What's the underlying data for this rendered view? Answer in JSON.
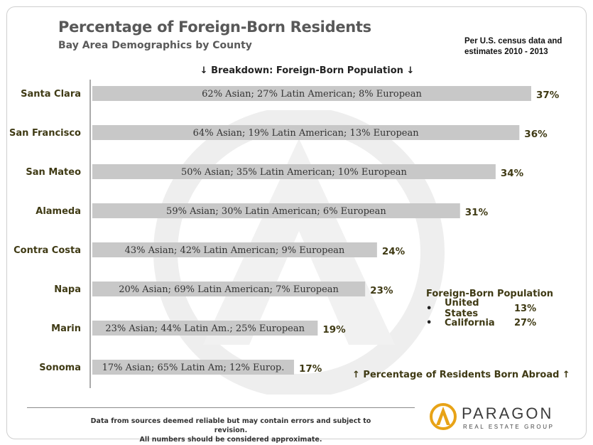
{
  "header": {
    "title": "Percentage of Foreign-Born Residents",
    "subtitle": "Bay Area Demographics by County",
    "source_line1": "Per U.S. census data and",
    "source_line2": "estimates 2010 - 2013"
  },
  "breakdown_label": "↓ Breakdown: Foreign-Born Population ↓",
  "chart_data": {
    "type": "bar",
    "orientation": "horizontal",
    "title": "Percentage of Foreign-Born Residents",
    "categories": [
      "Santa Clara",
      "San Francisco",
      "San Mateo",
      "Alameda",
      "Contra Costa",
      "Napa",
      "Marin",
      "Sonoma"
    ],
    "values": [
      37,
      36,
      34,
      31,
      24,
      23,
      19,
      17
    ],
    "value_labels": [
      "37%",
      "36%",
      "34%",
      "31%",
      "24%",
      "23%",
      "19%",
      "17%"
    ],
    "bar_annotations": [
      "62% Asian; 27% Latin American; 8% European",
      "64% Asian; 19% Latin American; 13% European",
      "50% Asian; 35% Latin American; 10% European",
      "59% Asian; 30% Latin American; 6% European",
      "43% Asian; 42% Latin American; 9% European",
      "20% Asian; 69% Latin American; 7% European",
      "23% Asian; 44% Latin Am.; 25% European",
      "17% Asian; 65% Latin Am; 12% Europ."
    ],
    "xlim": [
      0,
      37
    ],
    "bar_color": "#c8c8c8",
    "value_label_color": "#3f3a14"
  },
  "legend": {
    "title": "Foreign-Born Population",
    "rows": [
      {
        "bullet": "•",
        "name": "United States",
        "value": "13%"
      },
      {
        "bullet": "•",
        "name": "California",
        "value": "27%"
      }
    ]
  },
  "bottom_note": "↑ Percentage of Residents Born Abroad ↑",
  "footer": {
    "line1": "Data from sources deemed reliable but may contain errors and subject to revision.",
    "line2": "All numbers should be considered approximate."
  },
  "brand": {
    "name": "PARAGON",
    "tagline": "REAL ESTATE GROUP",
    "accent": "#e8a317"
  }
}
